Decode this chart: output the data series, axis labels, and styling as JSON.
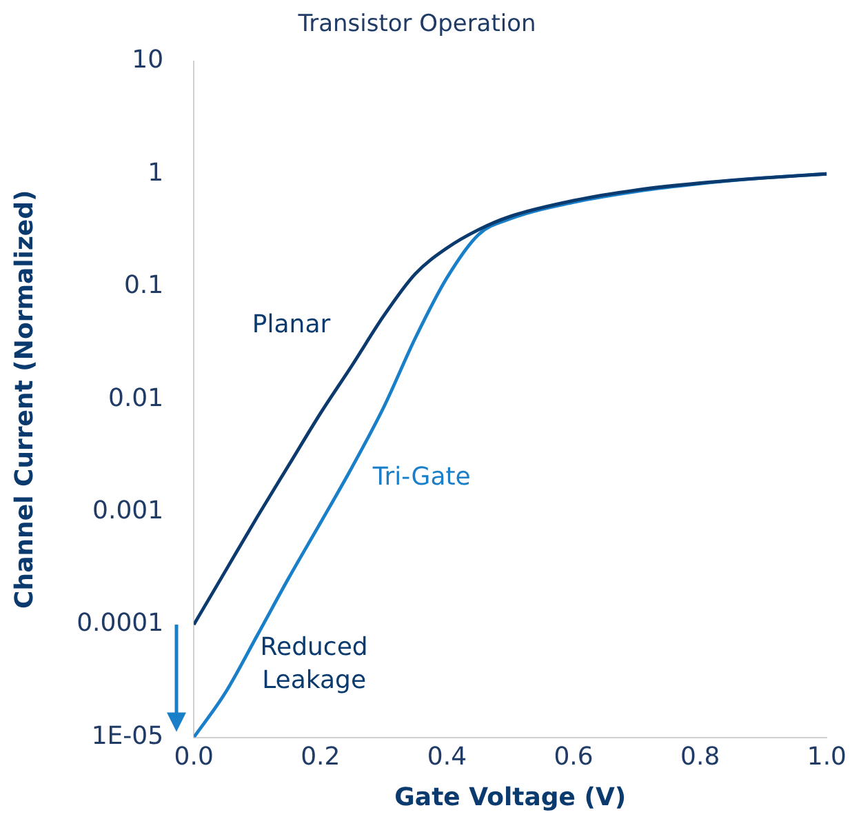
{
  "chart_data": {
    "type": "line",
    "title": "Transistor Operation",
    "xlabel": "Gate Voltage (V)",
    "ylabel": "Channel Current (Normalized)",
    "x": [
      0,
      0.05,
      0.1,
      0.15,
      0.2,
      0.25,
      0.3,
      0.35,
      0.4,
      0.45,
      0.5,
      0.6,
      0.7,
      0.8,
      0.9,
      1.0
    ],
    "series": [
      {
        "name": "Planar",
        "color": "#0b3a6e",
        "values": [
          0.0001,
          0.0003,
          0.0009,
          0.0026,
          0.0075,
          0.02,
          0.055,
          0.13,
          0.22,
          0.32,
          0.42,
          0.58,
          0.72,
          0.83,
          0.92,
          1
        ]
      },
      {
        "name": "Tri-Gate",
        "color": "#1a7fc9",
        "values": [
          1e-05,
          2.5e-05,
          8e-05,
          0.00026,
          0.0008,
          0.0025,
          0.0085,
          0.035,
          0.12,
          0.29,
          0.4,
          0.56,
          0.7,
          0.82,
          0.92,
          1
        ]
      }
    ],
    "annotations": [
      "Reduced Leakage"
    ],
    "log": "y",
    "grid": false,
    "legend": false,
    "marker": "none",
    "line_style": "solid",
    "xlim": [
      0,
      1
    ],
    "xticks": [
      {
        "value": 0,
        "label": "0.0"
      },
      0.2,
      0.4,
      0.6,
      0.8,
      {
        "value": 1,
        "label": "1.0"
      }
    ],
    "ylim": [
      1e-05,
      10
    ],
    "yticks": [
      {
        "value": 1e-05,
        "label": "1E-05"
      },
      0.0001,
      0.001,
      0.01,
      0.1,
      1,
      10
    ]
  }
}
